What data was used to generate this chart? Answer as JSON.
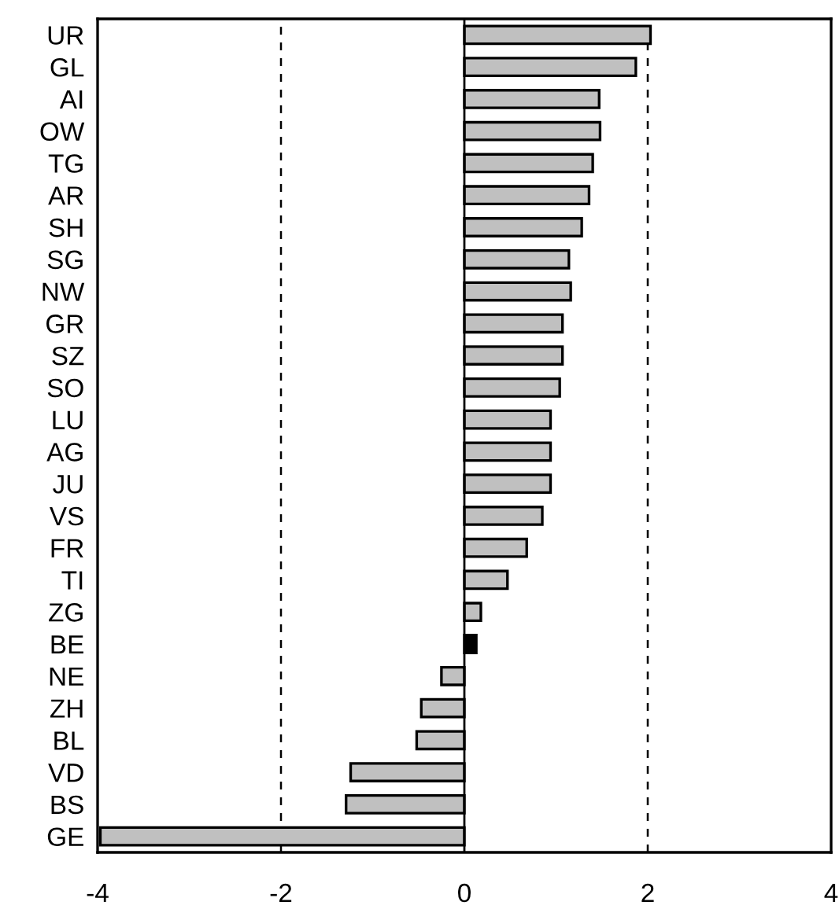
{
  "chart_data": {
    "type": "bar",
    "orientation": "horizontal",
    "categories": [
      "UR",
      "GL",
      "AI",
      "OW",
      "TG",
      "AR",
      "SH",
      "SG",
      "NW",
      "GR",
      "SZ",
      "SO",
      "LU",
      "AG",
      "JU",
      "VS",
      "FR",
      "TI",
      "ZG",
      "BE",
      "NE",
      "ZH",
      "BL",
      "VD",
      "BS",
      "GE"
    ],
    "values": [
      2.03,
      1.87,
      1.47,
      1.48,
      1.4,
      1.36,
      1.28,
      1.14,
      1.16,
      1.07,
      1.07,
      1.04,
      0.94,
      0.94,
      0.94,
      0.85,
      0.68,
      0.47,
      0.18,
      0.13,
      -0.25,
      -0.47,
      -0.52,
      -1.24,
      -1.29,
      -3.97
    ],
    "colors": [
      "#c0c0c0",
      "#c0c0c0",
      "#c0c0c0",
      "#c0c0c0",
      "#c0c0c0",
      "#c0c0c0",
      "#c0c0c0",
      "#c0c0c0",
      "#c0c0c0",
      "#c0c0c0",
      "#c0c0c0",
      "#c0c0c0",
      "#c0c0c0",
      "#c0c0c0",
      "#c0c0c0",
      "#c0c0c0",
      "#c0c0c0",
      "#c0c0c0",
      "#c0c0c0",
      "#000000",
      "#c0c0c0",
      "#c0c0c0",
      "#c0c0c0",
      "#c0c0c0",
      "#c0c0c0",
      "#c0c0c0"
    ],
    "xlim": [
      -4,
      4
    ],
    "xticks": [
      -4,
      -2,
      0,
      2,
      4
    ],
    "ref_lines": [
      {
        "axis": "x",
        "value": -2,
        "line_style": "dashed",
        "color": "#000000"
      },
      {
        "axis": "x",
        "value": 2,
        "line_style": "dashed",
        "color": "#000000"
      }
    ],
    "grid": false,
    "legend": false
  }
}
